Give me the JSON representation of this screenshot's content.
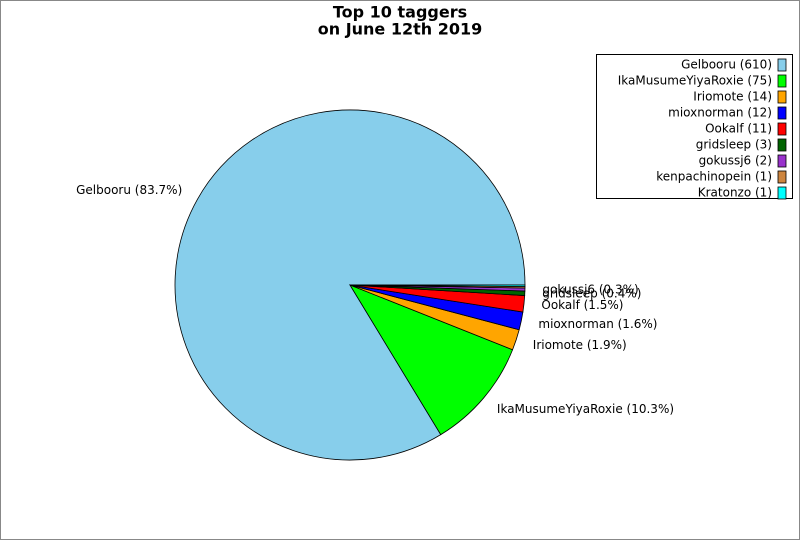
{
  "chart_data": {
    "type": "pie",
    "title": [
      "Top 10 taggers",
      "on June 12th 2019"
    ],
    "categories": [
      "Gelbooru",
      "IkaMusumeYiyaRoxie",
      "Iriomote",
      "mioxnorman",
      "Ookalf",
      "gridsleep",
      "gokussj6",
      "kenpachinopein",
      "Kratonzo"
    ],
    "values": [
      610,
      75,
      14,
      12,
      11,
      3,
      2,
      1,
      1
    ],
    "legend_labels": [
      "Gelbooru (610)",
      "IkaMusumeYiyaRoxie (75)",
      "Iriomote (14)",
      "mioxnorman (12)",
      "Ookalf (11)",
      "gridsleep (3)",
      "gokussj6 (2)",
      "kenpachinopein (1)",
      "Kratonzo (1)"
    ],
    "slice_labels": [
      "Gelbooru (83.7%)",
      "IkaMusumeYiyaRoxie (10.3%)",
      "Iriomote (1.9%)",
      "mioxnorman (1.6%)",
      "Ookalf (1.5%)",
      "gridsleep (0.4%)",
      "gokussj6 (0.3%)",
      null,
      null
    ],
    "colors": [
      "#87ceeb",
      "#00ff00",
      "#ffa500",
      "#0000ff",
      "#ff0000",
      "#006400",
      "#9932cc",
      "#cd853f",
      "#00ffff"
    ],
    "legend": "upper right"
  }
}
